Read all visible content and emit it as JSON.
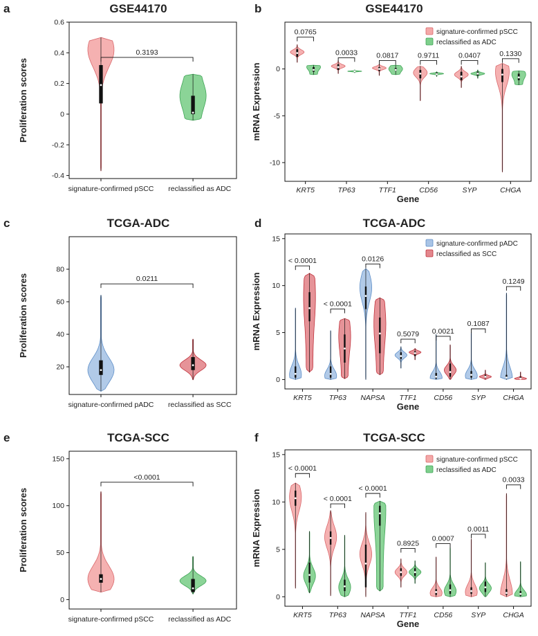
{
  "colors": {
    "pSCC": "#f4a9a8",
    "pSCC_dark": "#d9676b",
    "ADC": "#7ecf8c",
    "ADC_dark": "#3fa456",
    "pADC": "#a9c4e6",
    "pADC_dark": "#5f8fc8",
    "SCC": "#e3878d",
    "SCC_dark": "#c0323c"
  },
  "chart_data": [
    {
      "id": "a",
      "panel_label": "a",
      "type": "violin",
      "title": "GSE44170",
      "xlabel": "",
      "ylabel": "Proliferation scores",
      "ylim": [
        -0.42,
        0.6
      ],
      "yticks": [
        0.6,
        0.4,
        0.2,
        0,
        -0.2,
        -0.4
      ],
      "ytick_labels": [
        "0.6",
        "0.4",
        "0.2",
        "0",
        "-0.2",
        "-0.4"
      ],
      "categories": [
        "signature-confirmed pSCC",
        "reclassified as ADC"
      ],
      "violins": [
        {
          "min": -0.37,
          "max": 0.5,
          "q1": 0.07,
          "median": 0.19,
          "q3": 0.32,
          "mode": 0.42,
          "color": "pSCC"
        },
        {
          "min": -0.04,
          "max": 0.26,
          "q1": 0.0,
          "median": 0.01,
          "q3": 0.12,
          "mode": 0.12,
          "color": "ADC",
          "flat": true
        }
      ],
      "pvalues": [
        {
          "from": 0,
          "to": 1,
          "y": 0.37,
          "label": "0.3193"
        }
      ]
    },
    {
      "id": "b",
      "panel_label": "b",
      "type": "violin",
      "title": "GSE44170",
      "xlabel": "Gene",
      "ylabel": "mRNA Expression",
      "ylim": [
        -12,
        5
      ],
      "yticks": [
        0,
        -5,
        -10
      ],
      "ytick_labels": [
        "0",
        "-5",
        "-10"
      ],
      "categories": [
        "KRT5",
        "TP63",
        "TTF1",
        "CD56",
        "SYP",
        "CHGA"
      ],
      "legend": {
        "position": "top-right",
        "entries": [
          {
            "label": "signature-confirmed pSCC",
            "color": "pSCC"
          },
          {
            "label": "reclassified as ADC",
            "color": "ADC"
          }
        ]
      },
      "groups": [
        [
          {
            "min": 0.7,
            "max": 2.6,
            "q1": 1.3,
            "median": 1.7,
            "q3": 2.1,
            "mode": 1.8,
            "color": "pSCC"
          },
          {
            "min": -0.6,
            "max": 0.4,
            "q1": -0.3,
            "median": -0.1,
            "q3": 0.2,
            "mode": 0.2,
            "color": "ADC",
            "flat": true
          }
        ],
        [
          {
            "min": -0.5,
            "max": 0.9,
            "q1": -0.1,
            "median": 0.2,
            "q3": 0.5,
            "mode": 0.3,
            "color": "pSCC"
          },
          {
            "min": -0.4,
            "max": -0.1,
            "q1": -0.3,
            "median": -0.25,
            "q3": -0.2,
            "mode": -0.25,
            "color": "ADC"
          }
        ],
        [
          {
            "min": -0.7,
            "max": 0.5,
            "q1": -0.2,
            "median": 0.0,
            "q3": 0.2,
            "mode": 0.1,
            "color": "pSCC"
          },
          {
            "min": -0.6,
            "max": 0.4,
            "q1": -0.2,
            "median": -0.1,
            "q3": 0.1,
            "mode": 0.0,
            "color": "ADC",
            "flat": true
          }
        ],
        [
          {
            "min": -3.4,
            "max": 0.3,
            "q1": -1.0,
            "median": -0.5,
            "q3": -0.1,
            "mode": -0.4,
            "color": "pSCC"
          },
          {
            "min": -0.8,
            "max": -0.3,
            "q1": -0.6,
            "median": -0.55,
            "q3": -0.4,
            "mode": -0.5,
            "color": "ADC"
          }
        ],
        [
          {
            "min": -2.0,
            "max": 0.3,
            "q1": -1.2,
            "median": -0.8,
            "q3": -0.3,
            "mode": -0.6,
            "color": "pSCC"
          },
          {
            "min": -1.0,
            "max": -0.1,
            "q1": -0.7,
            "median": -0.5,
            "q3": -0.3,
            "mode": -0.5,
            "color": "ADC"
          }
        ],
        [
          {
            "min": -11.0,
            "max": 0.6,
            "q1": -1.4,
            "median": -0.6,
            "q3": 0.0,
            "mode": -0.3,
            "color": "pSCC"
          },
          {
            "min": -1.7,
            "max": -0.2,
            "q1": -1.2,
            "median": -0.9,
            "q3": -0.5,
            "mode": -0.6,
            "color": "ADC",
            "flat": true
          }
        ]
      ],
      "pvalues": [
        {
          "group": 0,
          "y": 3.4,
          "label": "0.0765"
        },
        {
          "group": 1,
          "y": 1.2,
          "label": "0.0033"
        },
        {
          "group": 2,
          "y": 0.9,
          "label": "0.0817"
        },
        {
          "group": 3,
          "y": 0.9,
          "label": "0.9711"
        },
        {
          "group": 4,
          "y": 0.9,
          "label": "0.0407"
        },
        {
          "group": 5,
          "y": 1.1,
          "label": "0.1330"
        }
      ]
    },
    {
      "id": "c",
      "panel_label": "c",
      "type": "violin",
      "title": "TCGA-ADC",
      "xlabel": "",
      "ylabel": "Proliferation scores",
      "ylim": [
        3,
        100
      ],
      "yticks": [
        80,
        60,
        40,
        20
      ],
      "ytick_labels": [
        "80",
        "60",
        "40",
        "20"
      ],
      "categories": [
        "signature-confirmed pADC",
        "reclassified as SCC"
      ],
      "violins": [
        {
          "min": 5,
          "max": 64,
          "q1": 15,
          "median": 18,
          "q3": 24,
          "mode": 18,
          "color": "pADC"
        },
        {
          "min": 12,
          "max": 37,
          "q1": 18,
          "median": 21,
          "q3": 26,
          "mode": 21,
          "color": "SCC"
        }
      ],
      "pvalues": [
        {
          "from": 0,
          "to": 1,
          "y": 71,
          "label": "0.0211"
        }
      ]
    },
    {
      "id": "d",
      "panel_label": "d",
      "type": "violin",
      "title": "TCGA-ADC",
      "xlabel": "Gene",
      "ylabel": "mRNA Expression",
      "ylim": [
        -1,
        15.5
      ],
      "yticks": [
        15,
        10,
        5,
        0
      ],
      "ytick_labels": [
        "15",
        "10",
        "5",
        "0"
      ],
      "categories": [
        "KRT5",
        "TP63",
        "NAPSA",
        "TTF1",
        "CD56",
        "SYP",
        "CHGA"
      ],
      "legend": {
        "position": "top-right",
        "entries": [
          {
            "label": "signature-confirmed pADC",
            "color": "pADC"
          },
          {
            "label": "reclassified as SCC",
            "color": "SCC"
          }
        ]
      },
      "groups": [
        [
          {
            "min": 0,
            "max": 7.6,
            "q1": 0.2,
            "median": 0.6,
            "q3": 1.4,
            "mode": 0.5,
            "color": "pADC"
          },
          {
            "min": 0.8,
            "max": 11.3,
            "q1": 6.2,
            "median": 7.6,
            "q3": 9.3,
            "mode": 8.8,
            "color": "SCC",
            "flat": true
          }
        ],
        [
          {
            "min": 0,
            "max": 5.2,
            "q1": 0.2,
            "median": 0.6,
            "q3": 1.4,
            "mode": 0.4,
            "color": "pADC"
          },
          {
            "min": 0.1,
            "max": 6.5,
            "q1": 1.8,
            "median": 3.3,
            "q3": 4.8,
            "mode": 4.6,
            "color": "SCC",
            "flat": true
          }
        ],
        [
          {
            "min": 0,
            "max": 11.8,
            "q1": 7.5,
            "median": 8.9,
            "q3": 9.9,
            "mode": 9.8,
            "color": "pADC"
          },
          {
            "min": 0.5,
            "max": 8.7,
            "q1": 2.8,
            "median": 4.9,
            "q3": 6.6,
            "mode": 5.9,
            "color": "SCC",
            "flat": true
          }
        ],
        [
          {
            "min": 1.2,
            "max": 3.5,
            "q1": 2.2,
            "median": 2.5,
            "q3": 2.9,
            "mode": 2.6,
            "color": "pADC"
          },
          {
            "min": 2.1,
            "max": 3.3,
            "q1": 2.5,
            "median": 2.8,
            "q3": 3.0,
            "mode": 2.9,
            "color": "SCC"
          }
        ],
        [
          {
            "min": 0,
            "max": 4.8,
            "q1": 0.1,
            "median": 0.3,
            "q3": 0.7,
            "mode": 0.2,
            "color": "pADC"
          },
          {
            "min": 0,
            "max": 3.7,
            "q1": 0.3,
            "median": 0.8,
            "q3": 1.7,
            "mode": 1.0,
            "color": "SCC"
          }
        ],
        [
          {
            "min": 0,
            "max": 5.0,
            "q1": 0.2,
            "median": 0.5,
            "q3": 0.9,
            "mode": 0.4,
            "color": "pADC"
          },
          {
            "min": 0,
            "max": 1.0,
            "q1": 0.2,
            "median": 0.3,
            "q3": 0.5,
            "mode": 0.3,
            "color": "SCC"
          }
        ],
        [
          {
            "min": 0,
            "max": 9.2,
            "q1": 0.1,
            "median": 0.2,
            "q3": 0.5,
            "mode": 0.1,
            "color": "pADC"
          },
          {
            "min": 0,
            "max": 0.8,
            "q1": 0.05,
            "median": 0.1,
            "q3": 0.3,
            "mode": 0.1,
            "color": "SCC"
          }
        ]
      ],
      "pvalues": [
        {
          "group": 0,
          "y": 12.1,
          "label": "< 0.0001"
        },
        {
          "group": 1,
          "y": 7.5,
          "label": "< 0.0001"
        },
        {
          "group": 2,
          "y": 12.3,
          "label": "0.0126"
        },
        {
          "group": 3,
          "y": 4.3,
          "label": "0.5079"
        },
        {
          "group": 4,
          "y": 4.6,
          "label": "0.0021"
        },
        {
          "group": 5,
          "y": 5.4,
          "label": "0.1087"
        },
        {
          "group": 6,
          "y": 9.9,
          "label": "0.1249"
        }
      ]
    },
    {
      "id": "e",
      "panel_label": "e",
      "type": "violin",
      "title": "TCGA-SCC",
      "xlabel": "",
      "ylabel": "Proliferation scores",
      "ylim": [
        -10,
        158
      ],
      "yticks": [
        150,
        100,
        50,
        0
      ],
      "ytick_labels": [
        "150",
        "100",
        "50",
        "0"
      ],
      "categories": [
        "signature-confirmed pSCC",
        "reclassified as ADC"
      ],
      "violins": [
        {
          "min": 8,
          "max": 115,
          "q1": 18,
          "median": 22,
          "q3": 27,
          "mode": 22,
          "color": "pSCC"
        },
        {
          "min": 6,
          "max": 46,
          "q1": 8,
          "median": 12,
          "q3": 22,
          "mode": 20,
          "color": "ADC"
        }
      ],
      "pvalues": [
        {
          "from": 0,
          "to": 1,
          "y": 125,
          "label": "<0.0001"
        }
      ]
    },
    {
      "id": "f",
      "panel_label": "f",
      "type": "violin",
      "title": "TCGA-SCC",
      "xlabel": "Gene",
      "ylabel": "mRNA Expression",
      "ylim": [
        -1,
        15.5
      ],
      "yticks": [
        15,
        10,
        5,
        0
      ],
      "ytick_labels": [
        "15",
        "10",
        "5",
        "0"
      ],
      "categories": [
        "KRT5",
        "TP63",
        "NAPSA",
        "TTF1",
        "CD56",
        "SYP",
        "CHGA"
      ],
      "legend": {
        "position": "top-right",
        "entries": [
          {
            "label": "signature-confirmed pSCC",
            "color": "pSCC"
          },
          {
            "label": "reclassified as ADC",
            "color": "ADC"
          }
        ]
      },
      "groups": [
        [
          {
            "min": 0.9,
            "max": 12.0,
            "q1": 9.6,
            "median": 10.4,
            "q3": 11.2,
            "mode": 10.5,
            "color": "pSCC"
          },
          {
            "min": 0.4,
            "max": 6.9,
            "q1": 1.5,
            "median": 2.3,
            "q3": 3.6,
            "mode": 2.2,
            "color": "ADC"
          }
        ],
        [
          {
            "min": 0.1,
            "max": 9.1,
            "q1": 5.5,
            "median": 6.2,
            "q3": 6.9,
            "mode": 6.3,
            "color": "pSCC"
          },
          {
            "min": 0,
            "max": 6.5,
            "q1": 0.6,
            "median": 1.1,
            "q3": 1.8,
            "mode": 1.0,
            "color": "ADC"
          }
        ],
        [
          {
            "min": 0,
            "max": 8.9,
            "q1": 1.0,
            "median": 3.5,
            "q3": 5.5,
            "mode": 4.5,
            "color": "pSCC"
          },
          {
            "min": 0.6,
            "max": 10.1,
            "q1": 7.5,
            "median": 8.8,
            "q3": 9.6,
            "mode": 9.2,
            "color": "ADC",
            "flat": true
          }
        ],
        [
          {
            "min": 1.0,
            "max": 4.0,
            "q1": 2.2,
            "median": 2.6,
            "q3": 3.0,
            "mode": 2.6,
            "color": "pSCC"
          },
          {
            "min": 1.4,
            "max": 3.8,
            "q1": 2.2,
            "median": 2.6,
            "q3": 3.0,
            "mode": 2.6,
            "color": "ADC"
          }
        ],
        [
          {
            "min": 0,
            "max": 4.2,
            "q1": 0.2,
            "median": 0.5,
            "q3": 0.8,
            "mode": 0.4,
            "color": "pSCC"
          },
          {
            "min": 0,
            "max": 5.2,
            "q1": 0.3,
            "median": 0.7,
            "q3": 1.3,
            "mode": 0.6,
            "color": "ADC"
          }
        ],
        [
          {
            "min": 0,
            "max": 6.1,
            "q1": 0.3,
            "median": 0.6,
            "q3": 1.0,
            "mode": 0.5,
            "color": "pSCC"
          },
          {
            "min": 0,
            "max": 3.6,
            "q1": 0.5,
            "median": 1.0,
            "q3": 1.6,
            "mode": 0.9,
            "color": "ADC"
          }
        ],
        [
          {
            "min": 0,
            "max": 10.9,
            "q1": 0.2,
            "median": 0.4,
            "q3": 0.8,
            "mode": 0.3,
            "color": "pSCC"
          },
          {
            "min": 0,
            "max": 3.7,
            "q1": 0.1,
            "median": 0.3,
            "q3": 0.6,
            "mode": 0.2,
            "color": "ADC"
          }
        ]
      ],
      "pvalues": [
        {
          "group": 0,
          "y": 13.0,
          "label": "< 0.0001"
        },
        {
          "group": 1,
          "y": 9.8,
          "label": "< 0.0001"
        },
        {
          "group": 2,
          "y": 10.9,
          "label": "< 0.0001"
        },
        {
          "group": 3,
          "y": 5.1,
          "label": "0.8925"
        },
        {
          "group": 4,
          "y": 5.6,
          "label": "0.0007"
        },
        {
          "group": 5,
          "y": 6.6,
          "label": "0.0011"
        },
        {
          "group": 6,
          "y": 11.8,
          "label": "0.0033"
        }
      ]
    }
  ]
}
